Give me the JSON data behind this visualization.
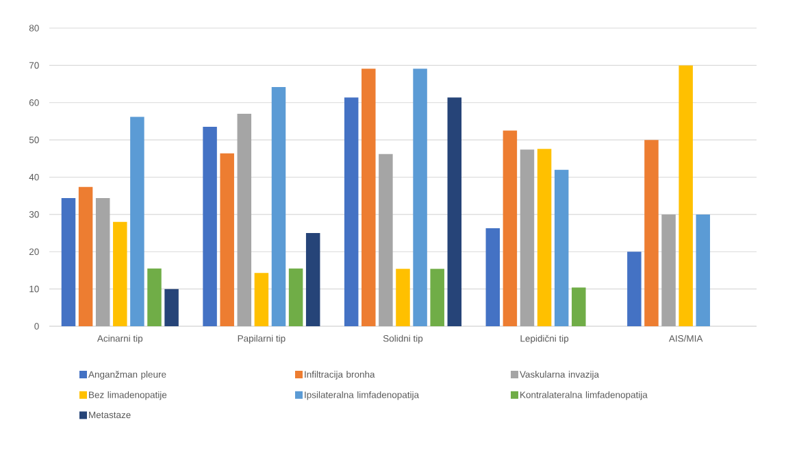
{
  "chart_data": {
    "type": "bar",
    "categories": [
      "Acinarni tip",
      "Papilarni tip",
      "Solidni tip",
      "Lepidični tip",
      "AIS/MIA"
    ],
    "series": [
      {
        "name": "Anganžman pleure",
        "color": "#4472c4",
        "values": [
          34.4,
          53.5,
          61.4,
          26.3,
          20
        ]
      },
      {
        "name": "Infiltracija bronha",
        "color": "#ed7d31",
        "values": [
          37.4,
          46.4,
          69.1,
          52.5,
          50
        ]
      },
      {
        "name": "Vaskularna invazija",
        "color": "#a5a5a5",
        "values": [
          34.4,
          57.0,
          46.2,
          47.4,
          30
        ]
      },
      {
        "name": "Bez limadenopatije",
        "color": "#ffc000",
        "values": [
          28.0,
          14.3,
          15.4,
          47.6,
          70
        ]
      },
      {
        "name": "Ipsilateralna limfadenopatija",
        "color": "#5b9bd5",
        "values": [
          56.2,
          64.2,
          69.1,
          42.0,
          30
        ]
      },
      {
        "name": "Kontralateralna limfadenopatija",
        "color": "#70ad47",
        "values": [
          15.5,
          15.5,
          15.4,
          10.4,
          null
        ]
      },
      {
        "name": "Metastaze",
        "color": "#264478",
        "values": [
          10.0,
          25.0,
          61.4,
          null,
          null
        ]
      }
    ],
    "ylim": [
      0,
      80
    ],
    "yticks": [
      0,
      10,
      20,
      30,
      40,
      50,
      60,
      70,
      80
    ],
    "grid": "y",
    "legend": "bottom"
  }
}
